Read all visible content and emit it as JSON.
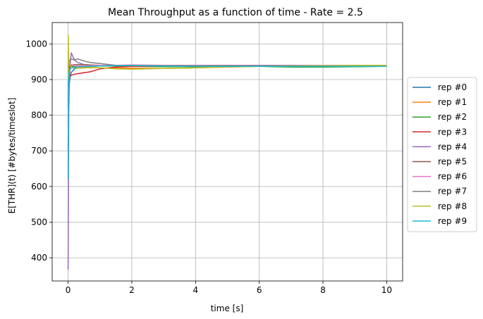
{
  "chart_data": {
    "type": "line",
    "title": "Mean Throughput as a function of time - Rate = 2.5",
    "xlabel": "time [s]",
    "ylabel": "E[THR](t) [#bytes/timeslot]",
    "xlim": [
      -0.5,
      10.5
    ],
    "ylim": [
      335,
      1060
    ],
    "xticks": [
      0,
      2,
      4,
      6,
      8,
      10
    ],
    "xtick_labels": [
      "0",
      "2",
      "4",
      "6",
      "8",
      "10"
    ],
    "yticks": [
      400,
      500,
      600,
      700,
      800,
      900,
      1000
    ],
    "ytick_labels": [
      "400",
      "500",
      "600",
      "700",
      "800",
      "900",
      "1000"
    ],
    "grid": true,
    "legend_position": "outside-right",
    "series": [
      {
        "name": "rep #0",
        "color": "#1f77b4",
        "x": [
          0,
          0.01,
          0.03,
          0.06,
          0.1,
          0.2,
          0.4,
          0.7,
          1.0,
          1.5,
          2.0,
          3.0,
          4.0,
          5.0,
          6.0,
          7.0,
          8.0,
          9.0,
          10.0
        ],
        "y": [
          700,
          840,
          880,
          905,
          920,
          930,
          935,
          937,
          938,
          939,
          939,
          939,
          939,
          938,
          938,
          938,
          938,
          938,
          938
        ]
      },
      {
        "name": "rep #1",
        "color": "#ff7f0e",
        "x": [
          0,
          0.01,
          0.03,
          0.06,
          0.1,
          0.2,
          0.4,
          0.7,
          1.0,
          1.5,
          2.0,
          3.0,
          4.0,
          5.0,
          6.0,
          7.0,
          8.0,
          9.0,
          10.0
        ],
        "y": [
          780,
          900,
          935,
          945,
          940,
          935,
          934,
          933,
          933,
          932,
          932,
          931,
          933,
          935,
          937,
          938,
          939,
          940,
          940
        ]
      },
      {
        "name": "rep #2",
        "color": "#2ca02c",
        "x": [
          0,
          0.01,
          0.03,
          0.06,
          0.1,
          0.2,
          0.4,
          0.7,
          1.0,
          1.5,
          2.0,
          3.0,
          4.0,
          5.0,
          6.0,
          7.0,
          8.0,
          9.0,
          10.0
        ],
        "y": [
          820,
          910,
          935,
          940,
          938,
          936,
          937,
          938,
          938,
          938,
          937,
          936,
          936,
          937,
          937,
          935,
          935,
          936,
          937
        ]
      },
      {
        "name": "rep #3",
        "color": "#d62728",
        "x": [
          0,
          0.01,
          0.03,
          0.06,
          0.1,
          0.2,
          0.4,
          0.7,
          1.0,
          1.5,
          2.0,
          3.0,
          4.0,
          5.0,
          6.0,
          7.0,
          8.0,
          9.0,
          10.0
        ],
        "y": [
          860,
          895,
          905,
          910,
          912,
          915,
          918,
          922,
          930,
          935,
          937,
          938,
          938,
          939,
          939,
          939,
          939,
          939,
          939
        ]
      },
      {
        "name": "rep #4",
        "color": "#9467bd",
        "x": [
          0,
          0.01,
          0.02,
          0.04,
          0.07,
          0.1,
          0.15,
          0.2,
          0.3,
          0.5,
          0.8,
          1.2,
          2.0,
          3.0,
          4.0,
          5.0,
          6.0,
          7.0,
          8.0,
          9.0,
          10.0
        ],
        "y": [
          367,
          580,
          800,
          900,
          950,
          975,
          965,
          955,
          948,
          942,
          940,
          939,
          939,
          939,
          939,
          939,
          939,
          939,
          939,
          939,
          939
        ]
      },
      {
        "name": "rep #5",
        "color": "#8c564b",
        "x": [
          0,
          0.01,
          0.03,
          0.06,
          0.1,
          0.2,
          0.4,
          0.7,
          1.0,
          1.5,
          2.0,
          3.0,
          4.0,
          5.0,
          6.0,
          7.0,
          8.0,
          9.0,
          10.0
        ],
        "y": [
          840,
          905,
          925,
          935,
          940,
          942,
          942,
          941,
          940,
          940,
          940,
          939,
          939,
          939,
          939,
          939,
          939,
          939,
          939
        ]
      },
      {
        "name": "rep #6",
        "color": "#e377c2",
        "x": [
          0,
          0.01,
          0.03,
          0.06,
          0.1,
          0.2,
          0.4,
          0.7,
          1.0,
          1.5,
          2.0,
          3.0,
          4.0,
          5.0,
          6.0,
          7.0,
          8.0,
          9.0,
          10.0
        ],
        "y": [
          850,
          920,
          940,
          945,
          942,
          938,
          938,
          939,
          940,
          940,
          941,
          940,
          940,
          940,
          940,
          940,
          940,
          940,
          940
        ]
      },
      {
        "name": "rep #7",
        "color": "#7f7f7f",
        "x": [
          0,
          0.01,
          0.03,
          0.06,
          0.1,
          0.2,
          0.3,
          0.5,
          0.7,
          1.0,
          1.5,
          2.0,
          3.0,
          4.0,
          5.0,
          6.0,
          7.0,
          8.0,
          9.0,
          10.0
        ],
        "y": [
          880,
          930,
          950,
          955,
          958,
          955,
          958,
          952,
          948,
          945,
          940,
          940,
          939,
          939,
          939,
          939,
          939,
          939,
          939,
          939
        ]
      },
      {
        "name": "rep #8",
        "color": "#bcbd22",
        "x": [
          0,
          0.005,
          0.01,
          0.02,
          0.04,
          0.07,
          0.1,
          0.2,
          0.4,
          0.7,
          1.0,
          1.5,
          2.0,
          2.5,
          3.0,
          4.0,
          5.0,
          6.0,
          7.0,
          8.0,
          9.0,
          10.0
        ],
        "y": [
          900,
          1024,
          990,
          960,
          945,
          940,
          935,
          932,
          932,
          934,
          933,
          930,
          929,
          930,
          931,
          933,
          935,
          937,
          938,
          939,
          940,
          940
        ]
      },
      {
        "name": "rep #9",
        "color": "#17becf",
        "x": [
          0,
          0.005,
          0.01,
          0.02,
          0.04,
          0.07,
          0.1,
          0.2,
          0.4,
          0.7,
          1.0,
          1.5,
          2.0,
          3.0,
          4.0,
          5.0,
          6.0,
          7.0,
          8.0,
          9.0,
          10.0
        ],
        "y": [
          620,
          760,
          870,
          910,
          925,
          930,
          932,
          934,
          936,
          937,
          938,
          939,
          939,
          938,
          937,
          937,
          937,
          937,
          937,
          937,
          937
        ]
      }
    ]
  }
}
